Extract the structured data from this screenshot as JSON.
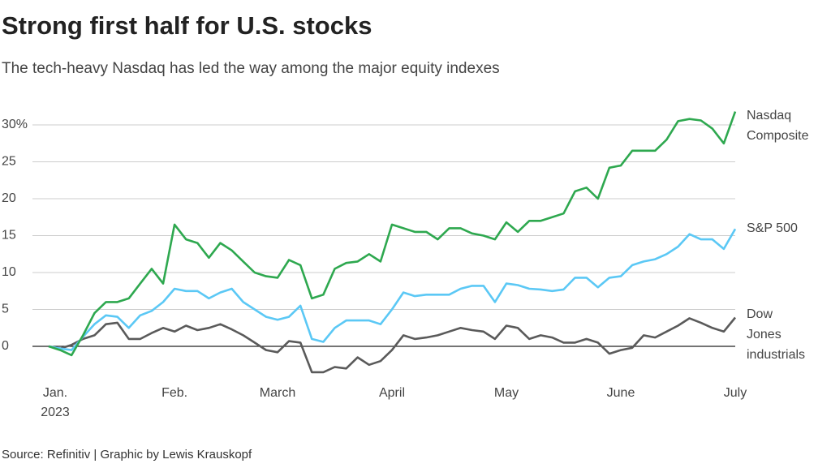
{
  "chart_data": {
    "type": "line",
    "title": "Strong first half for U.S. stocks",
    "subtitle": "The tech-heavy Nasdaq has led the way among the major equity indexes",
    "source": "Source: Refinitiv | Graphic by Lewis Krauskopf",
    "categories": [
      "Jan.",
      null,
      null,
      null,
      null,
      null,
      null,
      null,
      null,
      null,
      null,
      "Feb.",
      null,
      null,
      null,
      null,
      null,
      null,
      null,
      null,
      "March",
      null,
      null,
      null,
      null,
      null,
      null,
      null,
      null,
      null,
      "April",
      null,
      null,
      null,
      null,
      null,
      null,
      null,
      null,
      null,
      "May",
      null,
      null,
      null,
      null,
      null,
      null,
      null,
      null,
      null,
      "June",
      null,
      null,
      null,
      null,
      null,
      null,
      null,
      null,
      null,
      "July"
    ],
    "x_year_label": "2023",
    "ylim": [
      -3.9,
      33
    ],
    "yticks": [
      0,
      5,
      10,
      15,
      20,
      25,
      {
        "value": 30,
        "label": "30%"
      }
    ],
    "grid": true,
    "series": [
      {
        "name": "Nasdaq Composite",
        "color": "#2ea84f",
        "values": [
          0,
          -0.5,
          -1.2,
          1.5,
          4.5,
          6,
          6,
          6.5,
          8.5,
          10.5,
          8.5,
          16.5,
          14.5,
          14,
          12,
          14,
          13,
          11.5,
          10,
          9.5,
          9.3,
          11.7,
          11,
          6.5,
          7,
          10.5,
          11.3,
          11.5,
          12.5,
          11.5,
          16.5,
          16,
          15.5,
          15.5,
          14.5,
          16,
          16,
          15.3,
          15,
          14.5,
          16.8,
          15.5,
          17,
          17,
          17.5,
          18,
          21,
          21.5,
          20,
          24.2,
          24.5,
          26.5,
          26.5,
          26.5,
          28,
          30.5,
          30.8,
          30.6,
          29.5,
          27.5,
          31.8
        ]
      },
      {
        "name": "S&P 500",
        "color": "#5bc8f5",
        "values": [
          0,
          -0.3,
          -0.5,
          1.3,
          3,
          4.2,
          4,
          2.5,
          4.2,
          4.8,
          6,
          7.8,
          7.5,
          7.5,
          6.5,
          7.3,
          7.8,
          6,
          5,
          4,
          3.6,
          4,
          5.5,
          1,
          0.6,
          2.5,
          3.5,
          3.5,
          3.5,
          3,
          5,
          7.3,
          6.8,
          7,
          7,
          7,
          7.8,
          8.2,
          8.2,
          6,
          8.5,
          8.3,
          7.8,
          7.7,
          7.5,
          7.7,
          9.3,
          9.3,
          8,
          9.3,
          9.5,
          11,
          11.5,
          11.8,
          12.5,
          13.5,
          15.2,
          14.5,
          14.5,
          13.2,
          15.9
        ]
      },
      {
        "name": "Dow Jones industrials",
        "color": "#5a5a5a",
        "values": [
          0,
          -0.3,
          0.2,
          1,
          1.5,
          3,
          3.2,
          1,
          1,
          1.8,
          2.5,
          2,
          2.8,
          2.2,
          2.5,
          3,
          2.3,
          1.5,
          0.5,
          -0.5,
          -0.8,
          0.7,
          0.5,
          -3.5,
          -3.5,
          -2.8,
          -3,
          -1.5,
          -2.5,
          -2,
          -0.5,
          1.5,
          1,
          1.2,
          1.5,
          2,
          2.5,
          2.2,
          2,
          1,
          2.8,
          2.5,
          1,
          1.5,
          1.2,
          0.5,
          0.5,
          1,
          0.5,
          -1,
          -0.5,
          -0.2,
          1.5,
          1.2,
          2,
          2.8,
          3.8,
          3.2,
          2.5,
          2,
          3.9
        ]
      }
    ]
  }
}
